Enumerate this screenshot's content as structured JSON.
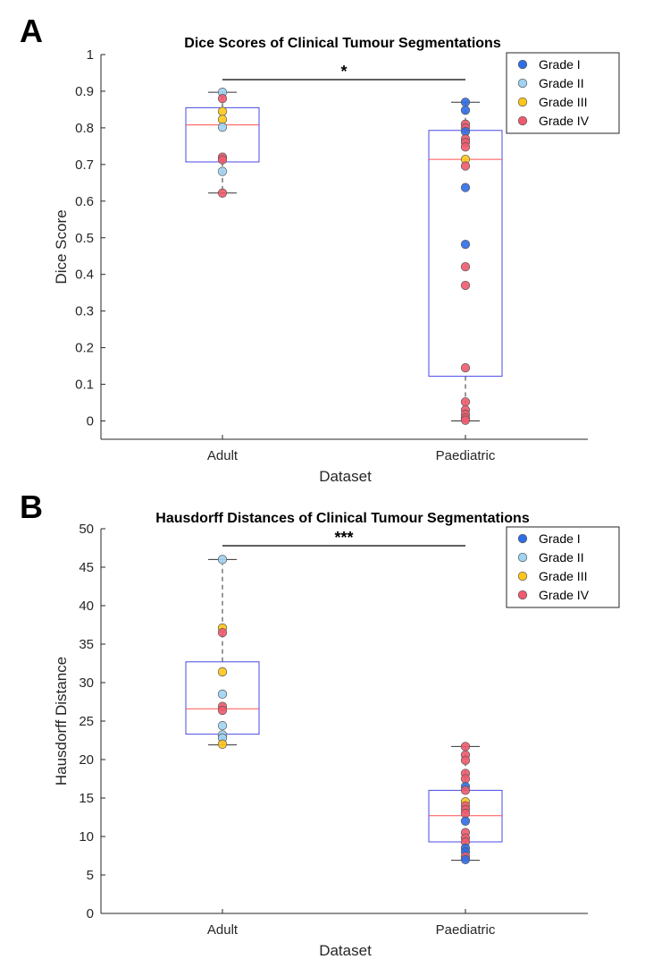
{
  "figure": {
    "panels": [
      "A",
      "B"
    ]
  },
  "colors": {
    "grade_i": "#2f6de6",
    "grade_ii": "#9fd3f2",
    "grade_iii": "#ffc61a",
    "grade_iv": "#f05a6e",
    "box": "#4a4ae6",
    "median": "#ff5050",
    "whisker": "#333333"
  },
  "chart_data": [
    {
      "type": "box",
      "panel_label": "A",
      "title": "Dice Scores of Clinical Tumour Segmentations",
      "xlabel": "Dataset",
      "ylabel": "Dice Score",
      "categories": [
        "Adult",
        "Paediatric"
      ],
      "ylim": [
        -0.05,
        1
      ],
      "yticks": [
        0,
        0.1,
        0.2,
        0.3,
        0.4,
        0.5,
        0.6,
        0.7,
        0.8,
        0.9,
        1
      ],
      "ytick_labels": [
        "0",
        "0.1",
        "0.2",
        "0.3",
        "0.4",
        "0.5",
        "0.6",
        "0.7",
        "0.8",
        "0.9",
        "1"
      ],
      "significance": "*",
      "legend": {
        "position": "top-right",
        "entries": [
          "Grade I",
          "Grade II",
          "Grade III",
          "Grade IV"
        ]
      },
      "boxes": [
        {
          "category": "Adult",
          "q1": 0.707,
          "median": 0.808,
          "q3": 0.855,
          "whisker_low": 0.622,
          "whisker_high": 0.897
        },
        {
          "category": "Paediatric",
          "q1": 0.122,
          "median": 0.714,
          "q3": 0.793,
          "whisker_low": 0.0,
          "whisker_high": 0.87
        }
      ],
      "points": [
        {
          "category": "Adult",
          "grade": "Grade II",
          "value": 0.897
        },
        {
          "category": "Adult",
          "grade": "Grade IV",
          "value": 0.88
        },
        {
          "category": "Adult",
          "grade": "Grade III",
          "value": 0.845
        },
        {
          "category": "Adult",
          "grade": "Grade III",
          "value": 0.823
        },
        {
          "category": "Adult",
          "grade": "Grade II",
          "value": 0.802
        },
        {
          "category": "Adult",
          "grade": "Grade IV",
          "value": 0.72
        },
        {
          "category": "Adult",
          "grade": "Grade IV",
          "value": 0.713
        },
        {
          "category": "Adult",
          "grade": "Grade II",
          "value": 0.681
        },
        {
          "category": "Adult",
          "grade": "Grade IV",
          "value": 0.622
        },
        {
          "category": "Paediatric",
          "grade": "Grade I",
          "value": 0.87
        },
        {
          "category": "Paediatric",
          "grade": "Grade I",
          "value": 0.848
        },
        {
          "category": "Paediatric",
          "grade": "Grade IV",
          "value": 0.81
        },
        {
          "category": "Paediatric",
          "grade": "Grade IV",
          "value": 0.8
        },
        {
          "category": "Paediatric",
          "grade": "Grade I",
          "value": 0.79
        },
        {
          "category": "Paediatric",
          "grade": "Grade IV",
          "value": 0.77
        },
        {
          "category": "Paediatric",
          "grade": "Grade IV",
          "value": 0.76
        },
        {
          "category": "Paediatric",
          "grade": "Grade IV",
          "value": 0.748
        },
        {
          "category": "Paediatric",
          "grade": "Grade III",
          "value": 0.714
        },
        {
          "category": "Paediatric",
          "grade": "Grade IV",
          "value": 0.696
        },
        {
          "category": "Paediatric",
          "grade": "Grade I",
          "value": 0.637
        },
        {
          "category": "Paediatric",
          "grade": "Grade I",
          "value": 0.482
        },
        {
          "category": "Paediatric",
          "grade": "Grade IV",
          "value": 0.421
        },
        {
          "category": "Paediatric",
          "grade": "Grade IV",
          "value": 0.37
        },
        {
          "category": "Paediatric",
          "grade": "Grade IV",
          "value": 0.145
        },
        {
          "category": "Paediatric",
          "grade": "Grade IV",
          "value": 0.052
        },
        {
          "category": "Paediatric",
          "grade": "Grade IV",
          "value": 0.03
        },
        {
          "category": "Paediatric",
          "grade": "Grade IV",
          "value": 0.018
        },
        {
          "category": "Paediatric",
          "grade": "Grade IV",
          "value": 0.008
        },
        {
          "category": "Paediatric",
          "grade": "Grade IV",
          "value": 0.002
        }
      ]
    },
    {
      "type": "box",
      "panel_label": "B",
      "title": "Hausdorff Distances of Clinical Tumour Segmentations",
      "xlabel": "Dataset",
      "ylabel": "Hausdorff Distance",
      "categories": [
        "Adult",
        "Paediatric"
      ],
      "ylim": [
        0,
        50
      ],
      "yticks": [
        0,
        5,
        10,
        15,
        20,
        25,
        30,
        35,
        40,
        45,
        50
      ],
      "ytick_labels": [
        "0",
        "5",
        "10",
        "15",
        "20",
        "25",
        "30",
        "35",
        "40",
        "45",
        "50"
      ],
      "significance": "***",
      "legend": {
        "position": "top-right",
        "entries": [
          "Grade I",
          "Grade II",
          "Grade III",
          "Grade IV"
        ]
      },
      "boxes": [
        {
          "category": "Adult",
          "q1": 23.3,
          "median": 26.6,
          "q3": 32.7,
          "whisker_low": 21.9,
          "whisker_high": 46.0
        },
        {
          "category": "Paediatric",
          "q1": 9.3,
          "median": 12.7,
          "q3": 16.0,
          "whisker_low": 6.9,
          "whisker_high": 21.7
        }
      ],
      "points": [
        {
          "category": "Adult",
          "grade": "Grade II",
          "value": 46.0
        },
        {
          "category": "Adult",
          "grade": "Grade III",
          "value": 37.1
        },
        {
          "category": "Adult",
          "grade": "Grade IV",
          "value": 36.5
        },
        {
          "category": "Adult",
          "grade": "Grade III",
          "value": 31.4
        },
        {
          "category": "Adult",
          "grade": "Grade II",
          "value": 28.5
        },
        {
          "category": "Adult",
          "grade": "Grade IV",
          "value": 26.9
        },
        {
          "category": "Adult",
          "grade": "Grade IV",
          "value": 26.4
        },
        {
          "category": "Adult",
          "grade": "Grade II",
          "value": 24.4
        },
        {
          "category": "Adult",
          "grade": "Grade II",
          "value": 23.2
        },
        {
          "category": "Adult",
          "grade": "Grade II",
          "value": 22.8
        },
        {
          "category": "Adult",
          "grade": "Grade III",
          "value": 22.0
        },
        {
          "category": "Paediatric",
          "grade": "Grade IV",
          "value": 21.7
        },
        {
          "category": "Paediatric",
          "grade": "Grade IV",
          "value": 20.6
        },
        {
          "category": "Paediatric",
          "grade": "Grade IV",
          "value": 19.9
        },
        {
          "category": "Paediatric",
          "grade": "Grade IV",
          "value": 18.2
        },
        {
          "category": "Paediatric",
          "grade": "Grade IV",
          "value": 17.5
        },
        {
          "category": "Paediatric",
          "grade": "Grade I",
          "value": 16.5
        },
        {
          "category": "Paediatric",
          "grade": "Grade IV",
          "value": 16.0
        },
        {
          "category": "Paediatric",
          "grade": "Grade III",
          "value": 14.5
        },
        {
          "category": "Paediatric",
          "grade": "Grade IV",
          "value": 14.0
        },
        {
          "category": "Paediatric",
          "grade": "Grade IV",
          "value": 13.5
        },
        {
          "category": "Paediatric",
          "grade": "Grade IV",
          "value": 13.0
        },
        {
          "category": "Paediatric",
          "grade": "Grade I",
          "value": 12.0
        },
        {
          "category": "Paediatric",
          "grade": "Grade IV",
          "value": 10.5
        },
        {
          "category": "Paediatric",
          "grade": "Grade IV",
          "value": 9.8
        },
        {
          "category": "Paediatric",
          "grade": "Grade IV",
          "value": 9.3
        },
        {
          "category": "Paediatric",
          "grade": "Grade I",
          "value": 8.5
        },
        {
          "category": "Paediatric",
          "grade": "Grade I",
          "value": 8.0
        },
        {
          "category": "Paediatric",
          "grade": "Grade IV",
          "value": 7.4
        },
        {
          "category": "Paediatric",
          "grade": "Grade I",
          "value": 7.0
        }
      ]
    }
  ]
}
